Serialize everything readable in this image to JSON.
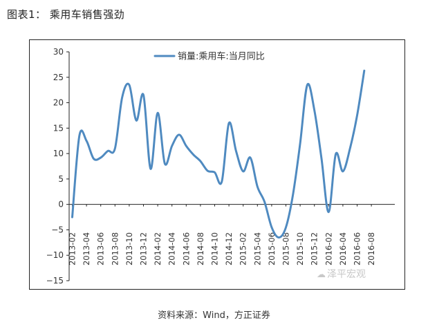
{
  "figure": {
    "title": "图表1：  乘用车销售强劲",
    "source": "资料来源：Wind，方正证券",
    "watermark": "泽平宏观",
    "watermark_icon": "speech-bubble-icon"
  },
  "colors": {
    "line": "#4f8ac0",
    "axis": "#222222",
    "text": "#333333"
  },
  "chart_data": {
    "type": "line",
    "title": "",
    "xlabel": "",
    "ylabel": "",
    "ylim": [
      -15,
      30
    ],
    "yticks": [
      30,
      25,
      20,
      15,
      10,
      5,
      0,
      -5,
      -10,
      -15
    ],
    "grid": false,
    "legend_position": "top-center",
    "categories": [
      "2013-02",
      "2013-03",
      "2013-04",
      "2013-05",
      "2013-06",
      "2013-07",
      "2013-08",
      "2013-09",
      "2013-10",
      "2013-11",
      "2013-12",
      "2014-01",
      "2014-02",
      "2014-03",
      "2014-04",
      "2014-05",
      "2014-06",
      "2014-07",
      "2014-08",
      "2014-09",
      "2014-10",
      "2014-11",
      "2014-12",
      "2015-01",
      "2015-02",
      "2015-03",
      "2015-04",
      "2015-05",
      "2015-06",
      "2015-07",
      "2015-08",
      "2015-09",
      "2015-10",
      "2015-11",
      "2015-12",
      "2016-01",
      "2016-02",
      "2016-03",
      "2016-04",
      "2016-05",
      "2016-06",
      "2016-07"
    ],
    "tick_labels": [
      "2013-02",
      "2013-04",
      "2013-06",
      "2013-08",
      "2013-10",
      "2013-12",
      "2014-02",
      "2014-04",
      "2014-06",
      "2014-08",
      "2014-10",
      "2014-12",
      "2015-02",
      "2015-04",
      "2015-06",
      "2015-08",
      "2015-10",
      "2015-12",
      "2016-02",
      "2016-04",
      "2016-06",
      "2016-08"
    ],
    "series": [
      {
        "name": "销量:乘用车:当月同比",
        "values": [
          -2.5,
          13.5,
          12.5,
          9.0,
          9.2,
          10.5,
          11.0,
          21.0,
          23.5,
          16.5,
          21.5,
          7.0,
          18.0,
          8.0,
          11.5,
          13.7,
          11.5,
          9.8,
          8.5,
          6.6,
          6.3,
          4.5,
          16.0,
          10.5,
          6.5,
          9.2,
          3.5,
          0.5,
          -4.5,
          -6.5,
          -4.5,
          2.0,
          12.0,
          23.5,
          18.5,
          9.0,
          -1.5,
          9.9,
          6.5,
          11.0,
          17.5,
          26.3
        ]
      }
    ]
  }
}
